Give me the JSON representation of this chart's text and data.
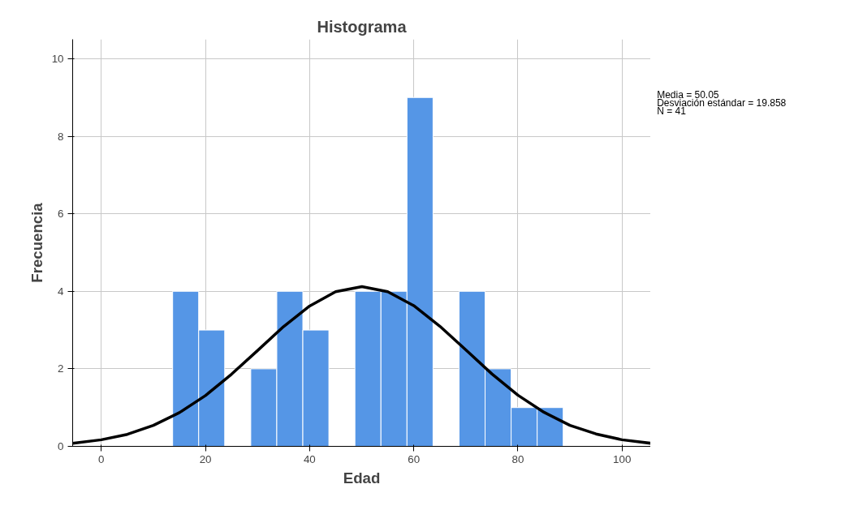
{
  "chart_data": {
    "type": "histogram",
    "title": "Histograma",
    "xlabel": "Edad",
    "ylabel": "Frecuencia",
    "bins": [
      13.7,
      18.7,
      23.7,
      28.7,
      33.7,
      38.7,
      43.7,
      48.7,
      53.7,
      58.7,
      63.7,
      68.7,
      73.7,
      78.7,
      83.7,
      88.7
    ],
    "values": [
      4,
      3,
      0,
      2,
      4,
      3,
      0,
      4,
      4,
      9,
      0,
      4,
      2,
      1,
      1
    ],
    "color": "#5596e6",
    "series": [
      {
        "type": "line",
        "color": "#000000",
        "x": [
          -5.5,
          0,
          5,
          10,
          15,
          20,
          25,
          30,
          35,
          40,
          45,
          50.05,
          55,
          60,
          65,
          70,
          75,
          80,
          85,
          90,
          95,
          100,
          105.5
        ],
        "values": [
          0.08,
          0.17,
          0.31,
          0.54,
          0.87,
          1.31,
          1.86,
          2.47,
          3.09,
          3.62,
          3.99,
          4.12,
          3.99,
          3.63,
          3.1,
          2.49,
          1.87,
          1.32,
          0.88,
          0.54,
          0.32,
          0.17,
          0.08
        ]
      }
    ],
    "annotations": [
      "Media = 50.05",
      "Desviación estándar = 19.858",
      "N = 41"
    ],
    "xlim": [
      -5.5,
      105.5
    ],
    "ylim": [
      0,
      10.5
    ],
    "xticks": [
      0,
      20,
      40,
      60,
      80,
      100
    ],
    "yticks": [
      0,
      2,
      4,
      6,
      8,
      10
    ],
    "grid": true
  }
}
